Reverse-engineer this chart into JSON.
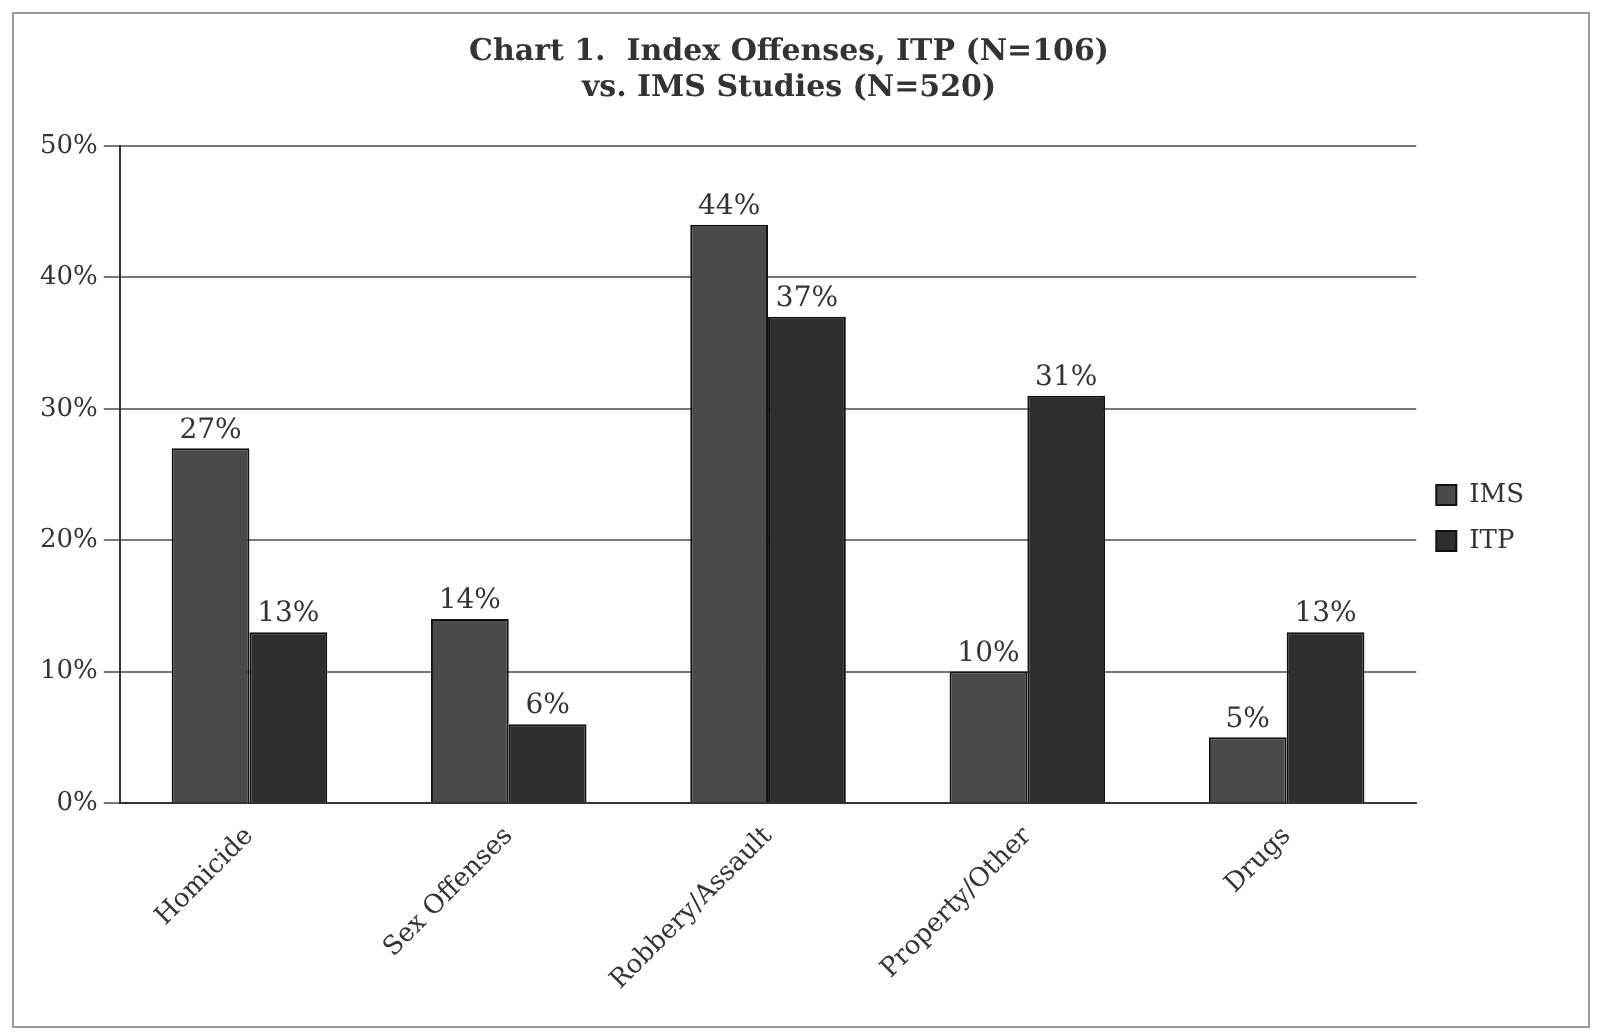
{
  "chart_data": {
    "type": "bar",
    "title": [
      "Chart 1.  Index Offenses, ITP (N=106)",
      "vs. IMS Studies (N=520)"
    ],
    "categories": [
      "Homicide",
      "Sex Offenses",
      "Robbery/Assault",
      "Property/Other",
      "Drugs"
    ],
    "series": [
      {
        "name": "IMS",
        "color": "#4a4a4a",
        "values": [
          27,
          14,
          44,
          10,
          5
        ],
        "value_labels": [
          "27%",
          "14%",
          "44%",
          "10%",
          "5%"
        ]
      },
      {
        "name": "ITP",
        "color": "#2e2e2e",
        "values": [
          13,
          6,
          37,
          31,
          13
        ],
        "value_labels": [
          "13%",
          "6%",
          "37%",
          "31%",
          "13%"
        ]
      }
    ],
    "ylim": [
      0,
      50
    ],
    "yticks": [
      {
        "value": 0,
        "label": "0%"
      },
      {
        "value": 10,
        "label": "10%"
      },
      {
        "value": 20,
        "label": "20%"
      },
      {
        "value": 30,
        "label": "30%"
      },
      {
        "value": 40,
        "label": "40%"
      },
      {
        "value": 50,
        "label": "50%"
      }
    ],
    "grid": "y",
    "legend": "right"
  }
}
